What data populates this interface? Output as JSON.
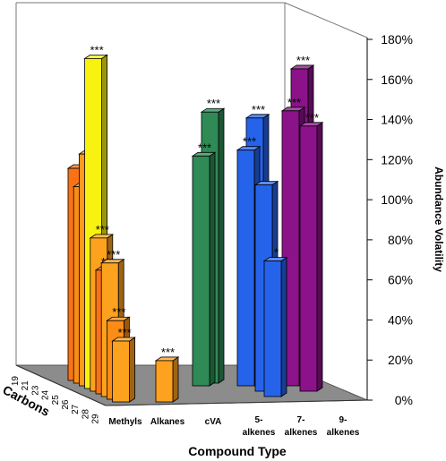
{
  "chart_data": {
    "type": "bar",
    "subtype": "3d-bar",
    "title": "",
    "xlabel": "Compound Type",
    "ylabel": "Abundance Volatility",
    "zlabel": "Carbons",
    "ylim": [
      0,
      180
    ],
    "y_ticks": [
      "0%",
      "20%",
      "40%",
      "60%",
      "80%",
      "100%",
      "120%",
      "140%",
      "160%",
      "180%"
    ],
    "categories": [
      {
        "lines": [
          "Methyls"
        ]
      },
      {
        "lines": [
          "Alkanes"
        ]
      },
      {
        "lines": [
          "cVA"
        ]
      },
      {
        "lines": [
          "5-",
          "alkenes"
        ]
      },
      {
        "lines": [
          "7-",
          "alkenes"
        ]
      },
      {
        "lines": [
          "9-",
          "alkenes"
        ]
      }
    ],
    "carbons": [
      "19",
      "21",
      "23",
      "24",
      "25",
      "26",
      "27",
      "28",
      "29"
    ],
    "bars": [
      {
        "category": "Methyls",
        "carbon": "19",
        "value": 108,
        "color": "#f97316",
        "sig": ""
      },
      {
        "category": "Methyls",
        "carbon": "21",
        "value": 100,
        "color": "#fb8c15",
        "sig": ""
      },
      {
        "category": "Methyls",
        "carbon": "23",
        "value": 118,
        "color": "#fd9a1a",
        "sig": ""
      },
      {
        "category": "Methyls",
        "carbon": "24",
        "value": 168,
        "color": "#f7f20f",
        "sig": "***"
      },
      {
        "category": "Methyls",
        "carbon": "25",
        "value": 78,
        "color": "#fda21e",
        "sig": "***"
      },
      {
        "category": "Methyls",
        "carbon": "26",
        "value": 63,
        "color": "#f97316",
        "sig": "***"
      },
      {
        "category": "Methyls",
        "carbon": "27",
        "value": 68,
        "color": "#fda21e",
        "sig": "***"
      },
      {
        "category": "Methyls",
        "carbon": "28",
        "value": 40,
        "color": "#fb8c15",
        "sig": "***"
      },
      {
        "category": "Methyls",
        "carbon": "29",
        "value": 31,
        "color": "#fda21e",
        "sig": "***"
      },
      {
        "category": "Alkanes",
        "carbon": "29",
        "value": 21,
        "color": "#fda21e",
        "sig": "***"
      },
      {
        "category": "cVA",
        "carbon": "23",
        "value": 117,
        "color": "#2f8a55",
        "sig": "***"
      },
      {
        "category": "cVA",
        "carbon": "21",
        "value": 138,
        "color": "#2f8a55",
        "sig": "***"
      },
      {
        "category": "5-alkenes",
        "carbon": "23",
        "value": 120,
        "color": "#2563eb",
        "sig": "***"
      },
      {
        "category": "5-alkenes",
        "carbon": "21",
        "value": 135,
        "color": "#2563eb",
        "sig": "***"
      },
      {
        "category": "5-alkenes",
        "carbon": "25",
        "value": 105,
        "color": "#2563eb",
        "sig": ""
      },
      {
        "category": "5-alkenes",
        "carbon": "27",
        "value": 69,
        "color": "#2563eb",
        "sig": "*"
      },
      {
        "category": "7-alkenes",
        "carbon": "23",
        "value": 140,
        "color": "#8b1289",
        "sig": "***"
      },
      {
        "category": "7-alkenes",
        "carbon": "21",
        "value": 160,
        "color": "#8b1289",
        "sig": "***"
      },
      {
        "category": "7-alkenes",
        "carbon": "25",
        "value": 135,
        "color": "#8b1289",
        "sig": "***"
      }
    ]
  }
}
